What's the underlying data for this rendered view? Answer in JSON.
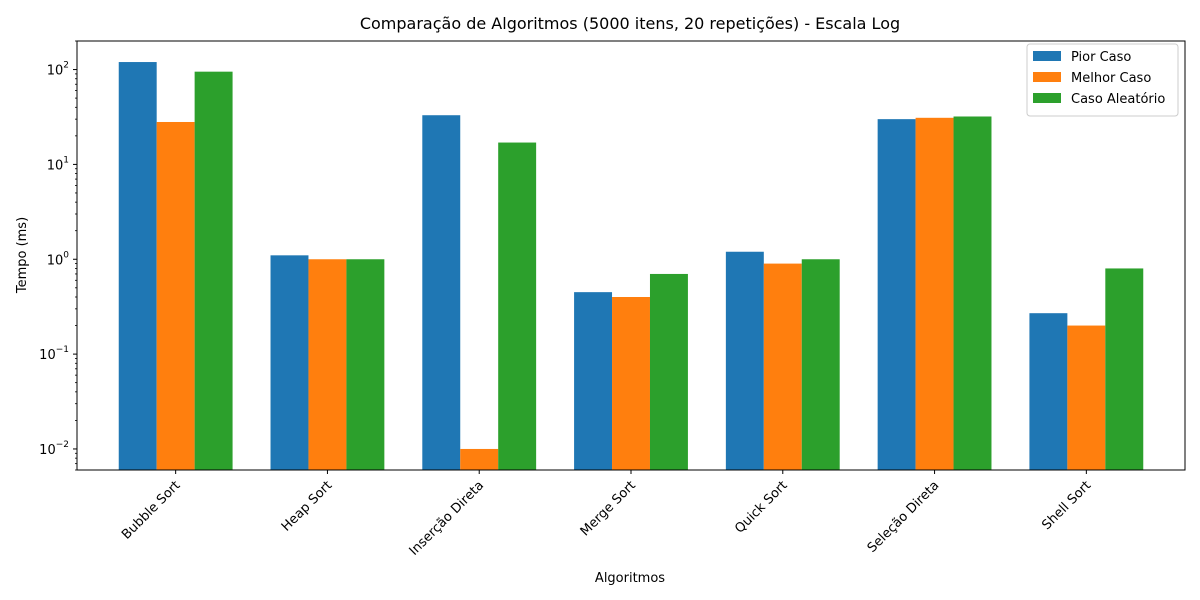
{
  "chart_data": {
    "type": "bar",
    "title": "Comparação de Algoritmos (5000 itens, 20 repetições) - Escala Log",
    "xlabel": "Algoritmos",
    "ylabel": "Tempo (ms)",
    "yscale": "log",
    "ylim": [
      0.006,
      200
    ],
    "yticks": [
      {
        "value": 0.01,
        "base": "10",
        "exp": "−2"
      },
      {
        "value": 0.1,
        "base": "10",
        "exp": "−1"
      },
      {
        "value": 1,
        "base": "10",
        "exp": "0"
      },
      {
        "value": 10,
        "base": "10",
        "exp": "1"
      },
      {
        "value": 100,
        "base": "10",
        "exp": "2"
      }
    ],
    "grid": false,
    "legend_position": "top-right",
    "categories": [
      "Bubble Sort",
      "Heap Sort",
      "Inserção Direta",
      "Merge Sort",
      "Quick Sort",
      "Seleção Direta",
      "Shell Sort"
    ],
    "series": [
      {
        "name": "Pior Caso",
        "color": "#1f77b4",
        "values": [
          120,
          1.1,
          33,
          0.45,
          1.2,
          30,
          0.27
        ]
      },
      {
        "name": "Melhor Caso",
        "color": "#ff7f0e",
        "values": [
          28,
          1.0,
          0.01,
          0.4,
          0.9,
          31,
          0.2
        ]
      },
      {
        "name": "Caso Aleatório",
        "color": "#2ca02c",
        "values": [
          95,
          1.0,
          17,
          0.7,
          1.0,
          32,
          0.8
        ]
      }
    ]
  }
}
